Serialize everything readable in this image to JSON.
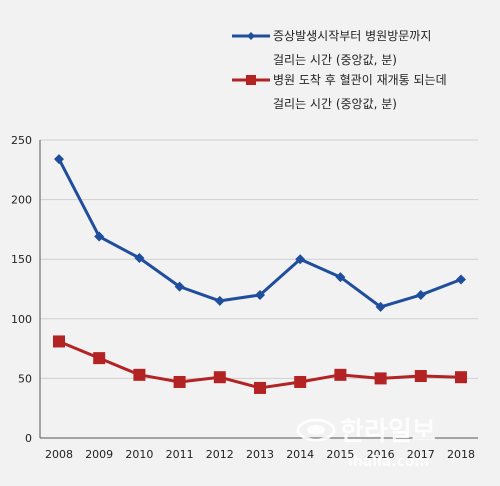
{
  "chart_data": {
    "type": "line",
    "x": [
      "2008",
      "2009",
      "2010",
      "2011",
      "2012",
      "2013",
      "2014",
      "2015",
      "2016",
      "2017",
      "2018"
    ],
    "ylim": [
      0,
      250
    ],
    "yticks": [
      0,
      50,
      100,
      150,
      200,
      250
    ],
    "grid": "horizontal",
    "legend_position": "top-right",
    "series": [
      {
        "name_lines": [
          "증상발생시작부터 병원방문까지",
          "걸리는 시간 (중앙값, 분)"
        ],
        "color": "#1f4e9c",
        "marker": "diamond",
        "values": [
          234,
          169,
          151,
          127,
          115,
          120,
          150,
          135,
          110,
          120,
          133
        ]
      },
      {
        "name_lines": [
          "병원 도착 후 혈관이 재개통 되는데",
          "걸리는 시간 (중앙값, 분)"
        ],
        "color": "#b42323",
        "marker": "square",
        "values": [
          81,
          67,
          53,
          47,
          51,
          42,
          47,
          53,
          50,
          52,
          51
        ]
      }
    ]
  },
  "watermark": {
    "main": "한라일보",
    "sub": "ihalla.com"
  }
}
